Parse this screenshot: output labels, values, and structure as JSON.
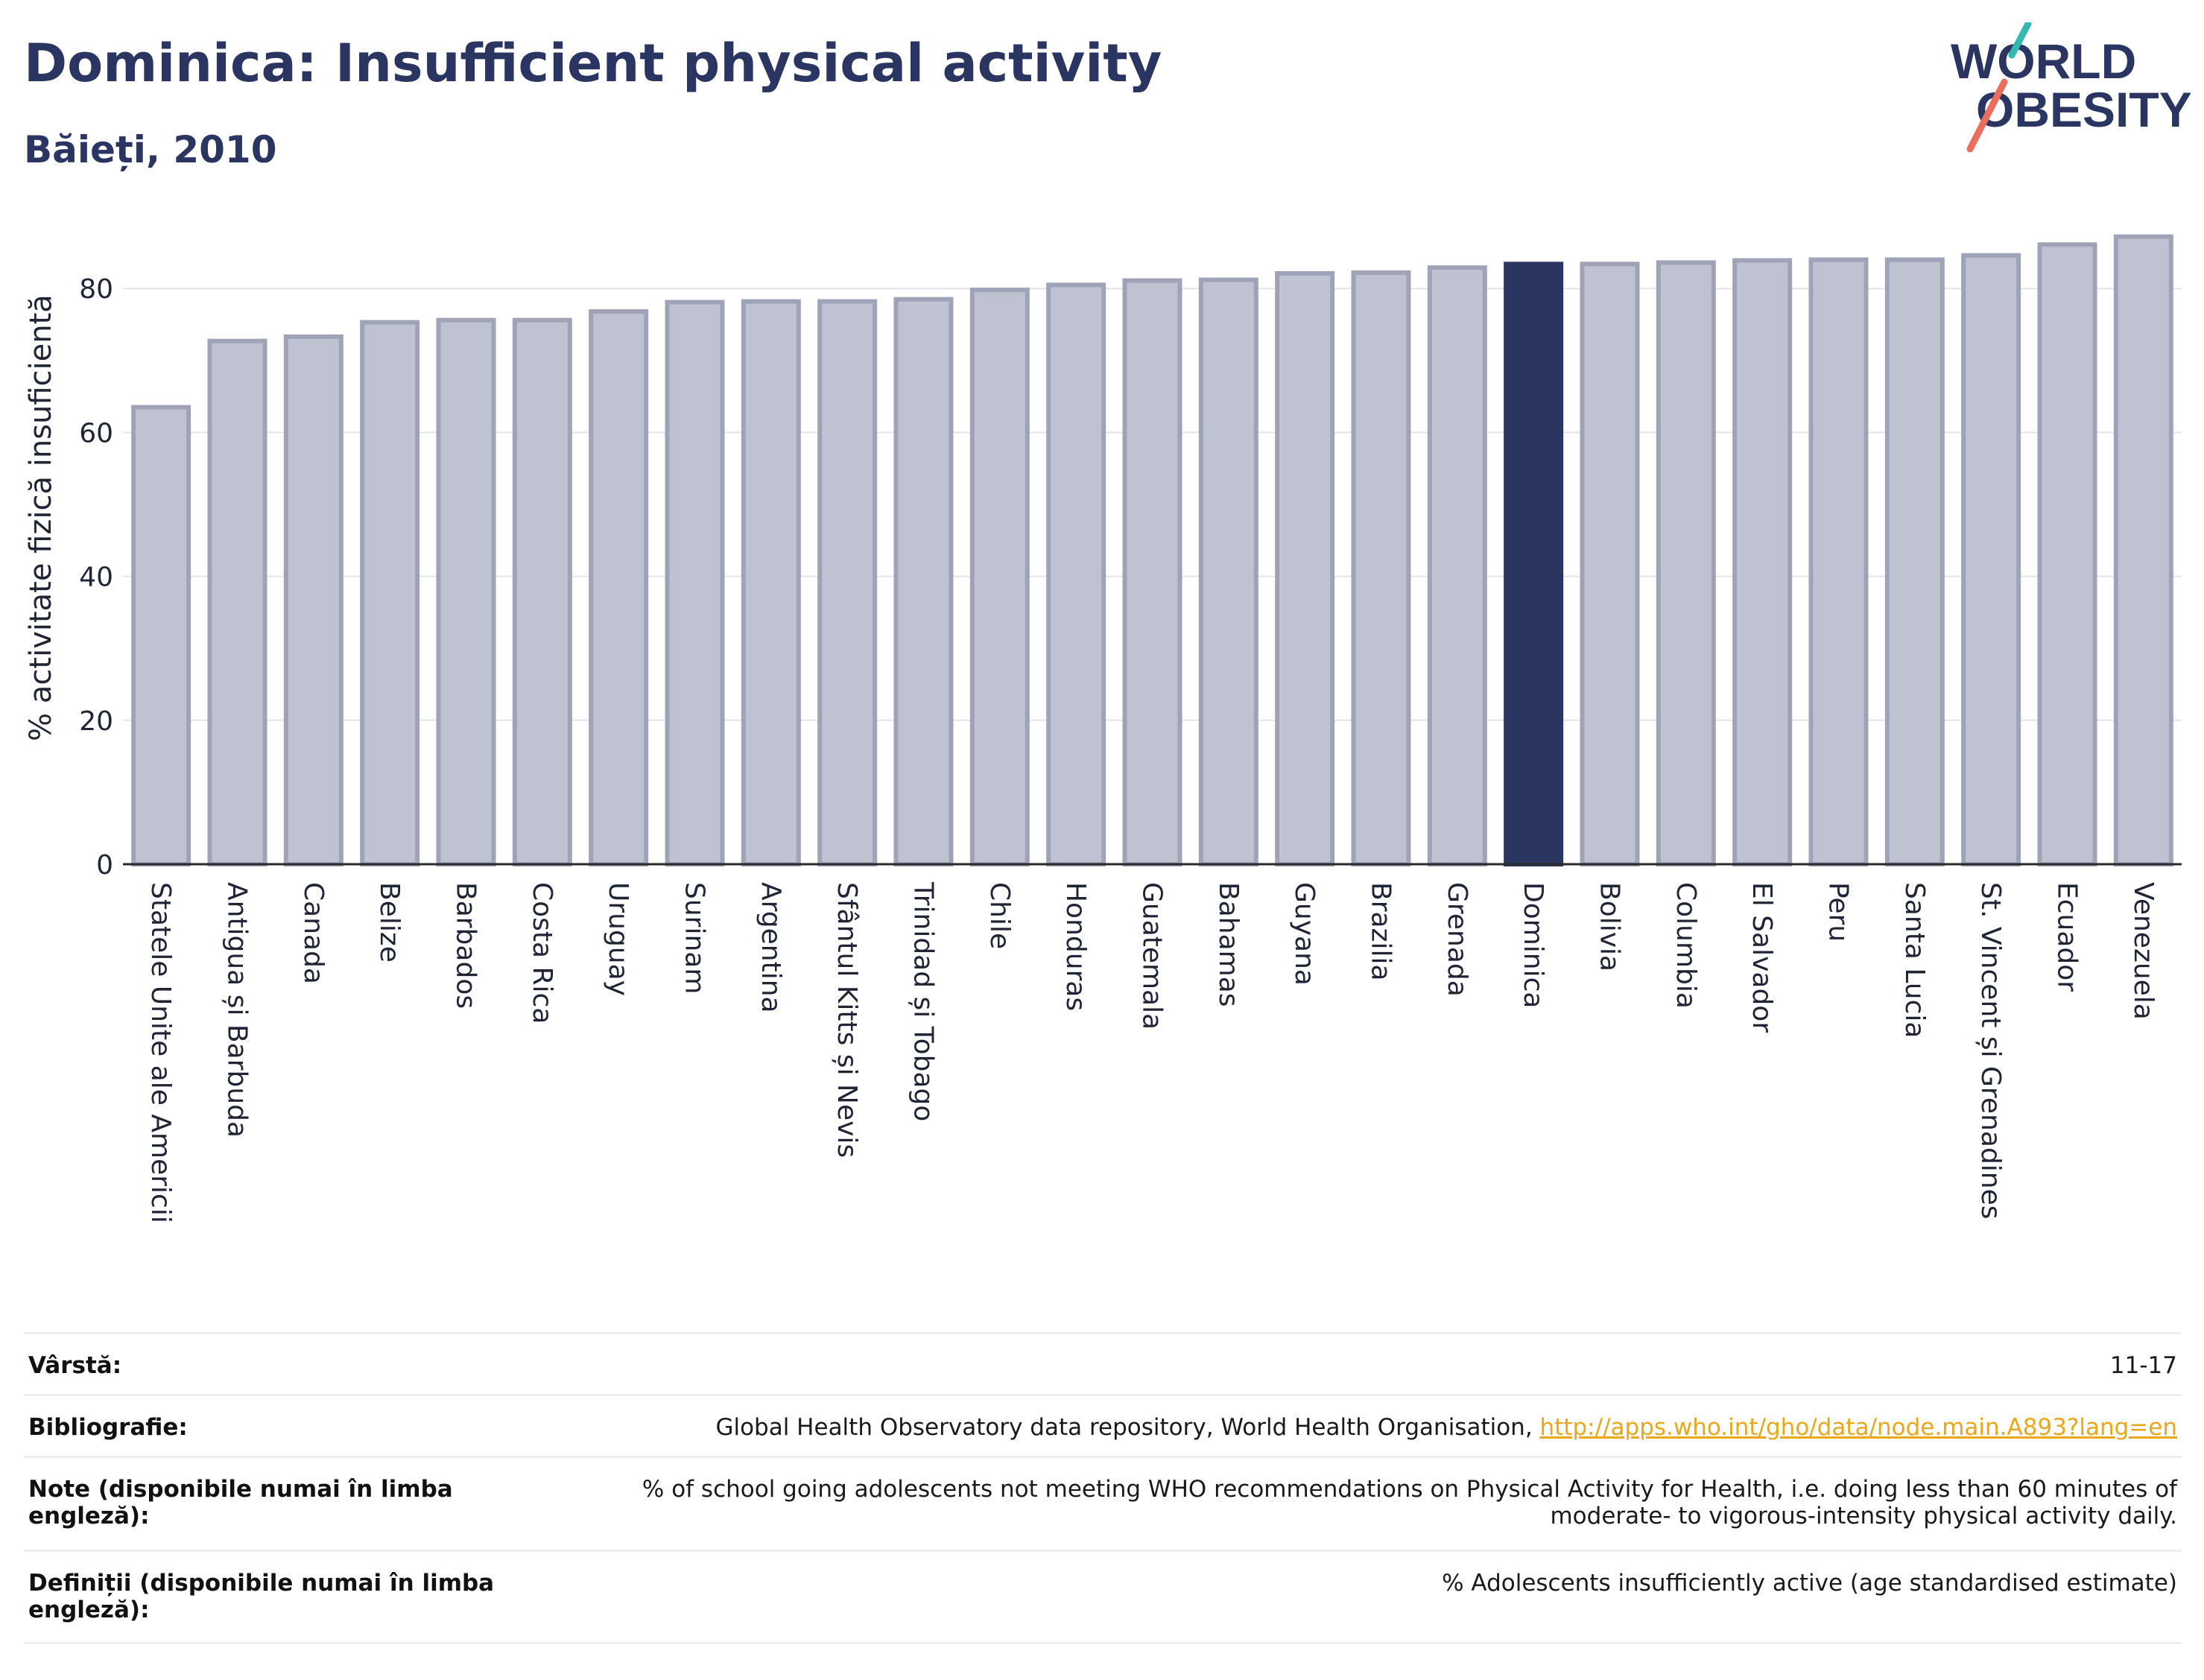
{
  "title": "Dominica: Insufficient physical activity",
  "subtitle": "Băieți, 2010",
  "logo": {
    "line1": "WORLD",
    "line2": "OBESITY"
  },
  "colors": {
    "title": "#2b3561",
    "bar": "#bfc2d0",
    "bar_border": "#9ea3b8",
    "highlight": "#2b3561",
    "link": "#e9a81c"
  },
  "chart_data": {
    "type": "bar",
    "ylabel": "% activitate fizică insuficientă",
    "ylim": [
      0,
      90
    ],
    "yticks": [
      0,
      20,
      40,
      60,
      80
    ],
    "grid": true,
    "highlight": "Dominica",
    "categories": [
      "Statele Unite ale Americii",
      "Antigua și Barbuda",
      "Canada",
      "Belize",
      "Barbados",
      "Costa Rica",
      "Uruguay",
      "Surinam",
      "Argentina",
      "Sfântul Kitts și Nevis",
      "Trinidad și Tobago",
      "Chile",
      "Honduras",
      "Guatemala",
      "Bahamas",
      "Guyana",
      "Brazilia",
      "Grenada",
      "Dominica",
      "Bolivia",
      "Columbia",
      "El Salvador",
      "Peru",
      "Santa Lucia",
      "St. Vincent și Grenadines",
      "Ecuador",
      "Venezuela"
    ],
    "values": [
      63.5,
      72.7,
      73.3,
      75.3,
      75.6,
      75.6,
      76.8,
      78.1,
      78.2,
      78.2,
      78.5,
      79.8,
      80.5,
      81.1,
      81.2,
      82.1,
      82.2,
      82.9,
      83.4,
      83.4,
      83.6,
      83.9,
      84.0,
      84.0,
      84.6,
      86.1,
      87.2
    ]
  },
  "meta": [
    {
      "label": "Vârstă:",
      "value": "11-17"
    },
    {
      "label": "Bibliografie:",
      "value": "Global Health Observatory data repository, World Health Organisation,",
      "link": "http://apps.who.int/gho/data/node.main.A893?lang=en"
    },
    {
      "label": "Note (disponibile numai în limba engleză):",
      "value": "% of school going adolescents not meeting WHO recommendations on Physical Activity for Health, i.e. doing less than 60 minutes of moderate- to vigorous-intensity physical activity daily."
    },
    {
      "label": "Definiții (disponibile numai în limba engleză):",
      "value": "% Adolescents insufficiently active (age standardised estimate)"
    }
  ]
}
